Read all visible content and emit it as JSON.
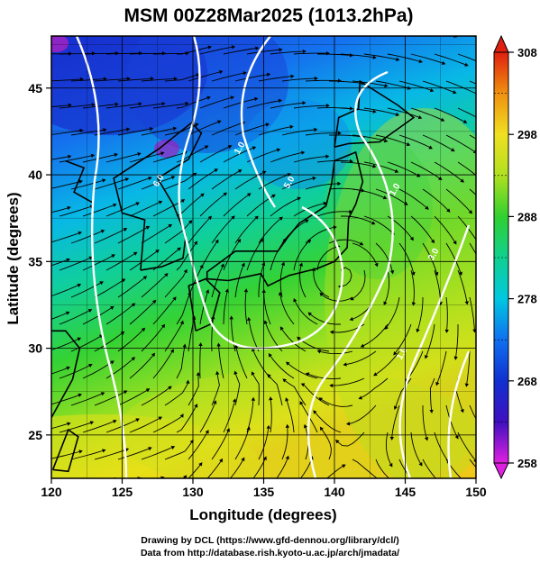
{
  "title": "MSM 00Z28Mar2025 (1013.2hPa)",
  "x_axis": {
    "label": "Longitude (degrees)",
    "min": 120,
    "max": 150,
    "ticks": [
      "120",
      "125",
      "130",
      "135",
      "140",
      "145",
      "150"
    ]
  },
  "y_axis": {
    "label": "Latitude  (degrees)",
    "min": 22.5,
    "max": 48,
    "ticks": [
      "25",
      "30",
      "35",
      "40",
      "45"
    ]
  },
  "colorbar": {
    "min": 258,
    "max": 308,
    "ticks": [
      "258",
      "268",
      "278",
      "288",
      "298",
      "308"
    ]
  },
  "contour_labels": [
    "6.0",
    "1.0",
    "5.0",
    "1.0",
    "3.0",
    "1.0"
  ],
  "credits": {
    "line1": "Drawing by DCL (https://www.gfd-dennou.org/library/dcl/)",
    "line2": "Data from http://database.rish.kyoto-u.ac.jp/arch/jmadata/"
  }
}
